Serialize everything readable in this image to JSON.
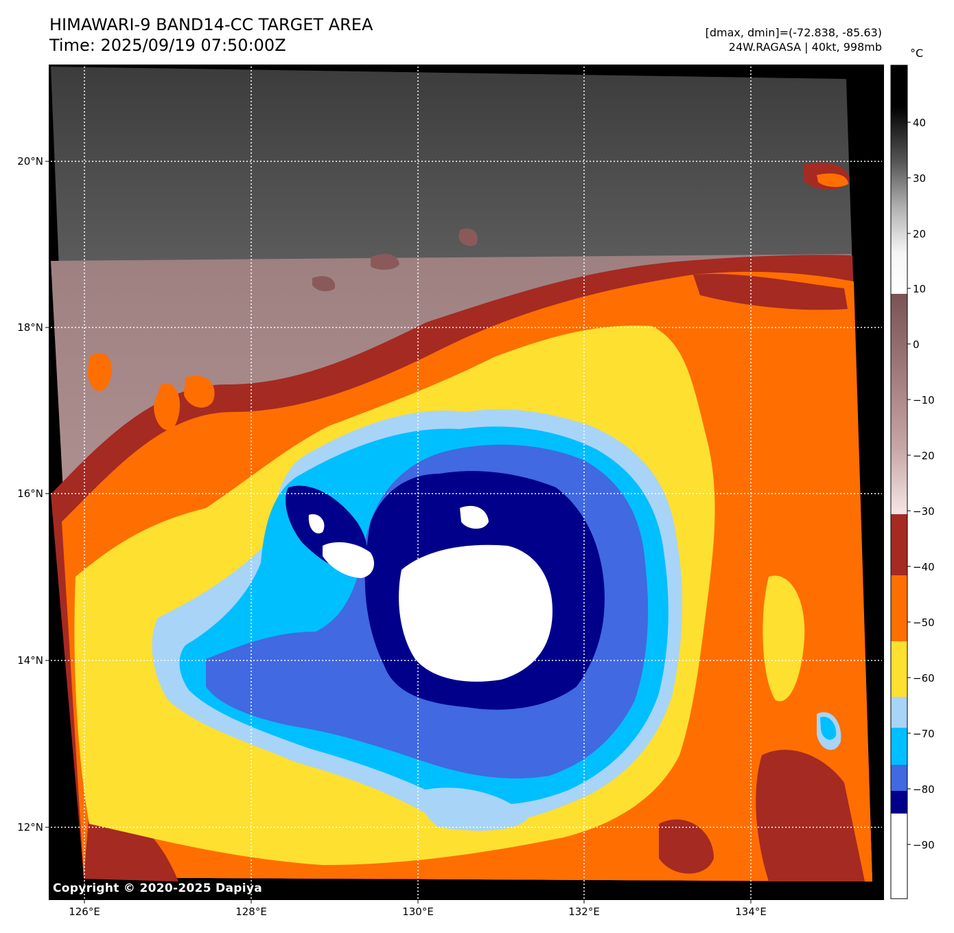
{
  "title": {
    "line1": "HIMAWARI-9 BAND14-CC TARGET AREA",
    "line2": "Time: 2025/09/19 07:50:00Z"
  },
  "stats": {
    "range": "[dmax, dmin]=(-72.838, -85.63)",
    "storm": "24W.RAGASA | 40kt, 998mb"
  },
  "colorbar": {
    "unit": "°C",
    "ticks": [
      "40",
      "30",
      "20",
      "10",
      "0",
      "−10",
      "−20",
      "−30",
      "−40",
      "−50",
      "−60",
      "−70",
      "−80",
      "−90"
    ],
    "colors": {
      "very_cold": "#ffffff",
      "navy": "#00008b",
      "royal_blue": "#4169e1",
      "deep_sky": "#00bfff",
      "light_blue": "#a8d4f8",
      "yellow": "#fde030",
      "orange": "#ff6e00",
      "dark_red": "#a52a22",
      "warm_low": "#c4a0a0",
      "warm_high": "#000000"
    }
  },
  "axes": {
    "lat_labels": [
      "20°N",
      "18°N",
      "16°N",
      "14°N",
      "12°N"
    ],
    "lon_labels": [
      "126°E",
      "128°E",
      "130°E",
      "132°E",
      "134°E"
    ]
  },
  "copyright": "Copyright © 2020-2025 Dapiya"
}
